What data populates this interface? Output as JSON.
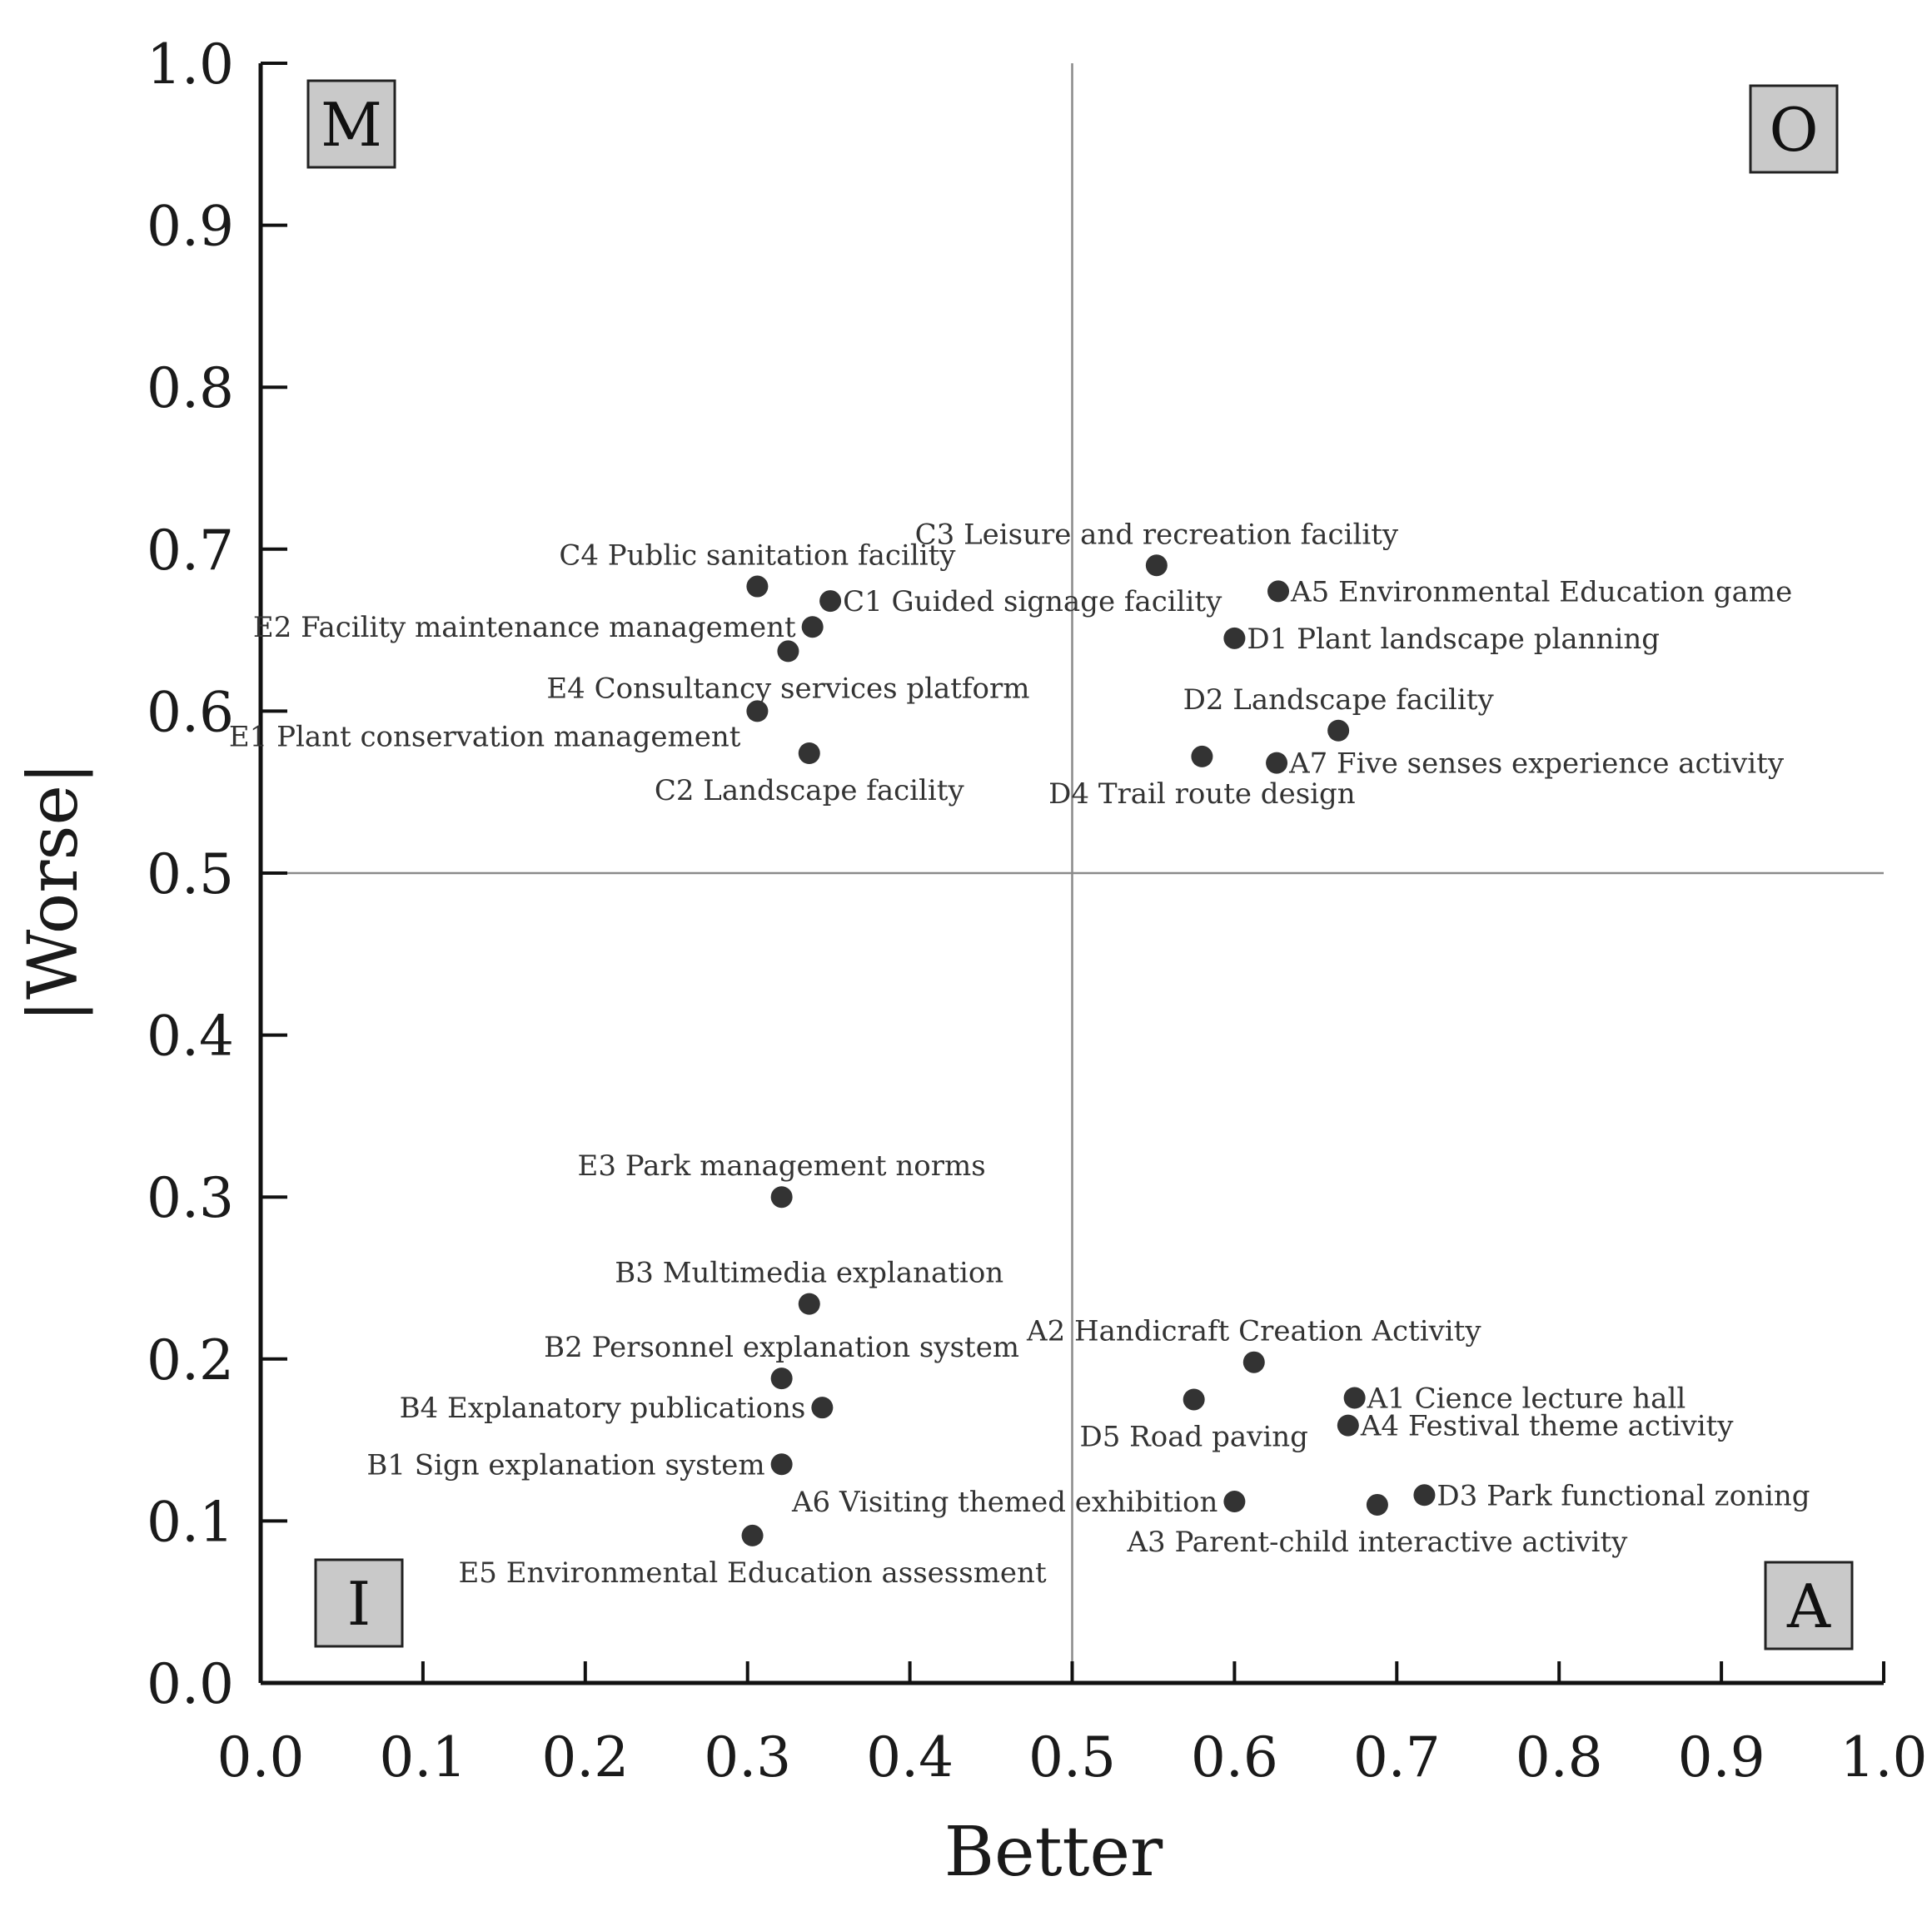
{
  "colors": {
    "point": "#333333",
    "axis": "#111111",
    "divider": "#8a8a8a",
    "quadrant_box_fill": "#c9c9c9",
    "quadrant_box_stroke": "#222222"
  },
  "chart_data": {
    "type": "scatter",
    "title": "",
    "xlabel": "Better",
    "ylabel": "|Worse|",
    "xlim": [
      0.0,
      1.0
    ],
    "ylim": [
      0.0,
      1.0
    ],
    "xticks": [
      "0.0",
      "0.1",
      "0.2",
      "0.3",
      "0.4",
      "0.5",
      "0.6",
      "0.7",
      "0.8",
      "0.9",
      "1.0"
    ],
    "yticks": [
      "0.0",
      "0.1",
      "0.2",
      "0.3",
      "0.4",
      "0.5",
      "0.6",
      "0.7",
      "0.8",
      "0.9",
      "1.0"
    ],
    "grid": false,
    "divider_x": 0.5,
    "divider_y": 0.5,
    "quadrants": [
      {
        "label": "M",
        "position": "top-left"
      },
      {
        "label": "O",
        "position": "top-right"
      },
      {
        "label": "I",
        "position": "bottom-left"
      },
      {
        "label": "A",
        "position": "bottom-right"
      }
    ],
    "points": [
      {
        "label": "C4 Public sanitation facility",
        "x": 0.306,
        "y": 0.677,
        "anchor": "above"
      },
      {
        "label": "C1 Guided signage facility",
        "x": 0.351,
        "y": 0.668,
        "anchor": "right"
      },
      {
        "label": "E2 Facility maintenance management",
        "x": 0.34,
        "y": 0.652,
        "anchor": "left"
      },
      {
        "label": "E4 Consultancy services platform",
        "x": 0.325,
        "y": 0.637,
        "anchor": "below"
      },
      {
        "label": "E1 Plant conservation management",
        "x": 0.306,
        "y": 0.6,
        "anchor": "left-below"
      },
      {
        "label": "C2 Landscape facility",
        "x": 0.338,
        "y": 0.574,
        "anchor": "below"
      },
      {
        "label": "C3 Leisure and recreation facility",
        "x": 0.552,
        "y": 0.69,
        "anchor": "above"
      },
      {
        "label": "A5 Environmental Education game",
        "x": 0.627,
        "y": 0.674,
        "anchor": "right"
      },
      {
        "label": "D1 Plant landscape planning",
        "x": 0.6,
        "y": 0.645,
        "anchor": "right"
      },
      {
        "label": "D2 Landscape facility",
        "x": 0.664,
        "y": 0.588,
        "anchor": "above"
      },
      {
        "label": "D4 Trail route design",
        "x": 0.58,
        "y": 0.572,
        "anchor": "below"
      },
      {
        "label": "A7 Five senses experience activity",
        "x": 0.626,
        "y": 0.568,
        "anchor": "right"
      },
      {
        "label": "E3 Park management norms",
        "x": 0.321,
        "y": 0.3,
        "anchor": "above"
      },
      {
        "label": "B3 Multimedia explanation",
        "x": 0.338,
        "y": 0.234,
        "anchor": "above"
      },
      {
        "label": "B2 Personnel explanation system",
        "x": 0.321,
        "y": 0.188,
        "anchor": "above"
      },
      {
        "label": "B4 Explanatory publications",
        "x": 0.346,
        "y": 0.17,
        "anchor": "left"
      },
      {
        "label": "B1 Sign explanation system",
        "x": 0.321,
        "y": 0.135,
        "anchor": "left"
      },
      {
        "label": "E5 Environmental Education assessment",
        "x": 0.303,
        "y": 0.091,
        "anchor": "below"
      },
      {
        "label": "A2 Handicraft Creation Activity",
        "x": 0.612,
        "y": 0.198,
        "anchor": "above"
      },
      {
        "label": "D5 Road paving",
        "x": 0.575,
        "y": 0.175,
        "anchor": "below"
      },
      {
        "label": "A1 Cience lecture hall",
        "x": 0.674,
        "y": 0.176,
        "anchor": "right"
      },
      {
        "label": "A4 Festival theme activity",
        "x": 0.67,
        "y": 0.159,
        "anchor": "right"
      },
      {
        "label": "A6 Visiting themed exhibition",
        "x": 0.6,
        "y": 0.112,
        "anchor": "left"
      },
      {
        "label": "D3 Park functional zoning",
        "x": 0.717,
        "y": 0.116,
        "anchor": "right"
      },
      {
        "label": "A3 Parent-child interactive activity",
        "x": 0.688,
        "y": 0.11,
        "anchor": "below"
      }
    ]
  }
}
